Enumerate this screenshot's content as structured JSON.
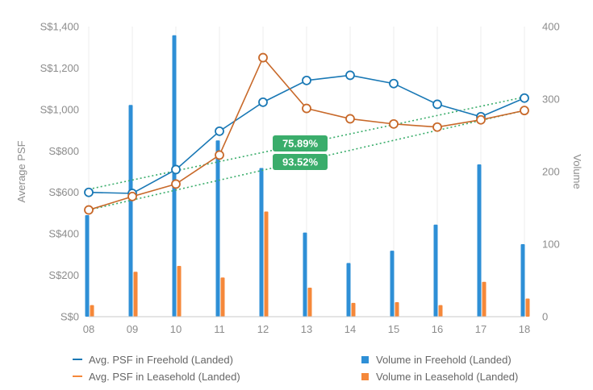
{
  "chart_data": {
    "type": "bar+line",
    "categories": [
      "08",
      "09",
      "10",
      "11",
      "12",
      "13",
      "14",
      "15",
      "16",
      "17",
      "18"
    ],
    "left_axis": {
      "label": "Average PSF",
      "ticks": [
        "S$0",
        "S$200",
        "S$400",
        "S$600",
        "S$800",
        "S$1,000",
        "S$1,200",
        "S$1,400"
      ],
      "range": [
        0,
        1400
      ]
    },
    "right_axis": {
      "label": "Volume",
      "ticks": [
        "0",
        "100",
        "200",
        "300",
        "400"
      ],
      "range": [
        0,
        400
      ]
    },
    "bar_series": [
      {
        "name": "Volume in Freehold (Landed)",
        "color": "#2e8fd6",
        "values": [
          140,
          292,
          388,
          243,
          205,
          116,
          74,
          91,
          127,
          210,
          100
        ]
      },
      {
        "name": "Volume in Leasehold (Landed)",
        "color": "#f5883a",
        "values": [
          16,
          62,
          70,
          54,
          145,
          40,
          19,
          20,
          16,
          48,
          25
        ]
      }
    ],
    "line_series": [
      {
        "name": "Avg. PSF in Freehold (Landed)",
        "color": "#1978b5",
        "values": [
          600,
          595,
          710,
          895,
          1035,
          1140,
          1165,
          1125,
          1025,
          965,
          1055
        ]
      },
      {
        "name": "Avg. PSF in Leasehold (Landed)",
        "color": "#c8692a",
        "values": [
          515,
          580,
          640,
          780,
          1250,
          1005,
          955,
          930,
          915,
          950,
          995
        ]
      }
    ],
    "trend_lines": [
      {
        "series": "Avg. PSF in Freehold (Landed)",
        "color": "#3aad6b",
        "start": 615,
        "end": 1060,
        "label": "75.89%"
      },
      {
        "series": "Avg. PSF in Leasehold (Landed)",
        "color": "#3aad6b",
        "start": 515,
        "end": 995,
        "label": "93.52%"
      }
    ],
    "grid": "vertical",
    "legend_position": "bottom"
  }
}
